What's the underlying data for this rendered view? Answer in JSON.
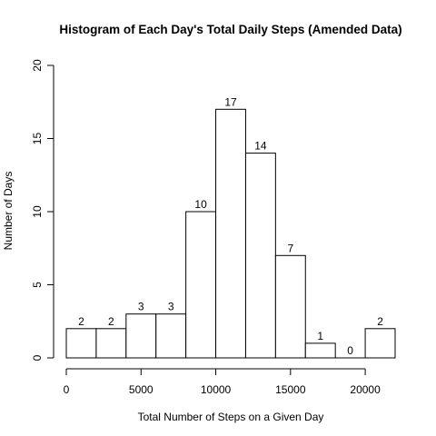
{
  "chart_data": {
    "type": "bar",
    "title": "Histogram of Each Day's Total Daily Steps (Amended Data)",
    "xlabel": "Total Number of Steps on a Given Day",
    "ylabel": "Number of Days",
    "bin_edges": [
      0,
      2000,
      4000,
      6000,
      8000,
      10000,
      12000,
      14000,
      16000,
      18000,
      20000,
      22000
    ],
    "values": [
      2,
      2,
      3,
      3,
      10,
      17,
      14,
      7,
      1,
      0,
      2
    ],
    "data_labels": [
      "2",
      "2",
      "3",
      "3",
      "10",
      "17",
      "14",
      "7",
      "1",
      "0",
      "2"
    ],
    "xlim": [
      0,
      22000
    ],
    "ylim": [
      0,
      20
    ],
    "x_ticks": [
      0,
      5000,
      10000,
      15000,
      20000
    ],
    "x_tick_labels": [
      "0",
      "5000",
      "10000",
      "15000",
      "20000"
    ],
    "y_ticks": [
      0,
      5,
      10,
      15,
      20
    ],
    "y_tick_labels": [
      "0",
      "5",
      "10",
      "15",
      "20"
    ],
    "grid": false,
    "colors": {
      "bar_fill": "#ffffff",
      "bar_stroke": "#000000",
      "axis": "#000000",
      "text": "#000000"
    }
  }
}
